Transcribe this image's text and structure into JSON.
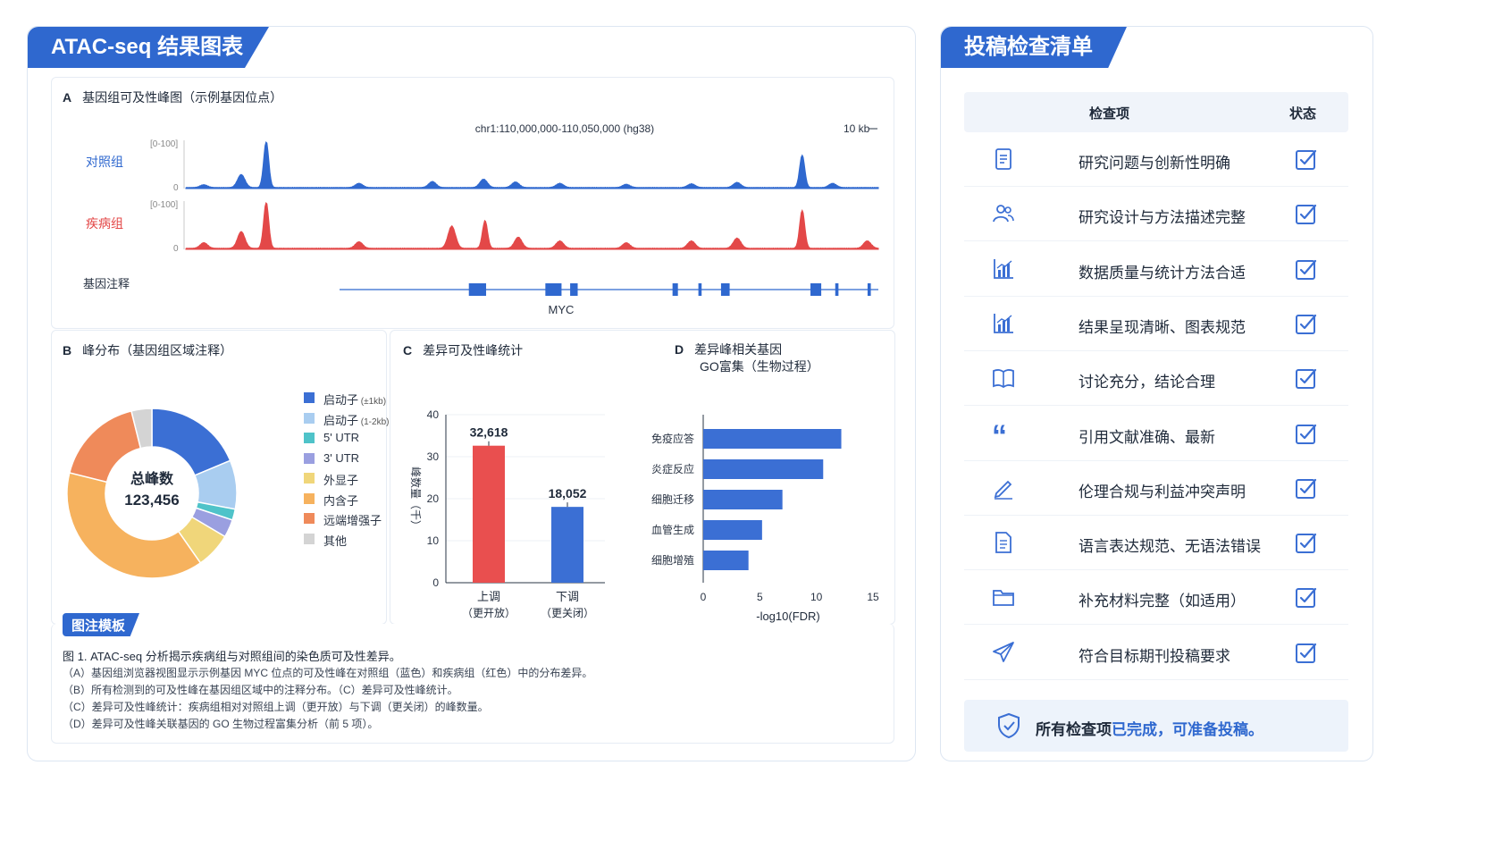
{
  "left_panel": {
    "title": "ATAC-seq 结果图表"
  },
  "panel_a": {
    "letter": "A",
    "title": "基因组可及性峰图（示例基因位点）",
    "locus": "chr1:110,000,000-110,050,000 (hg38)",
    "scale": "10 kb",
    "tracks": [
      {
        "name": "对照组",
        "range": "[0-100]",
        "zero": "0",
        "color": "#2f68cf"
      },
      {
        "name": "疾病组",
        "range": "[0-100]",
        "zero": "0",
        "color": "#e34848"
      }
    ],
    "annotation_label": "基因注释",
    "gene": "MYC"
  },
  "panel_b": {
    "letter": "B",
    "title": "峰分布（基因组区域注释）",
    "center_label": "总峰数",
    "center_value": "123,456"
  },
  "panel_c": {
    "letter": "C",
    "title": "差异可及性峰统计",
    "ylabel": "峰数量（千）"
  },
  "panel_d": {
    "letter": "D",
    "title_line1": "差异峰相关基因",
    "title_line2": "GO富集（生物过程）"
  },
  "legend_panel": {
    "title": "图注模板",
    "caption_title": "图 1. ATAC-seq 分析揭示疾病组与对照组间的染色质可及性差异。",
    "lines": [
      "（A）基因组浏览器视图显示示例基因 MYC 位点的可及性峰在对照组（蓝色）和疾病组（红色）中的分布差异。",
      "（B）所有检测到的可及性峰在基因组区域中的注释分布。（C）差异可及性峰统计。",
      "（C）差异可及性峰统计：疾病组相对对照组上调（更开放）与下调（更关闭）的峰数量。",
      "（D）差异可及性峰关联基因的 GO 生物过程富集分析（前 5 项）。"
    ]
  },
  "checklist": {
    "title": "投稿检查清单",
    "header_item": "检查项",
    "header_status": "状态",
    "items": [
      {
        "label": "研究问题与创新性明确",
        "icon": "document-icon"
      },
      {
        "label": "研究设计与方法描述完整",
        "icon": "users-icon"
      },
      {
        "label": "数据质量与统计方法合适",
        "icon": "bar-chart-icon"
      },
      {
        "label": "结果呈现清晰、图表规范",
        "icon": "bar-chart-icon"
      },
      {
        "label": "讨论充分，结论合理",
        "icon": "book-icon"
      },
      {
        "label": "引用文献准确、最新",
        "icon": "quote-icon"
      },
      {
        "label": "伦理合规与利益冲突声明",
        "icon": "pen-icon"
      },
      {
        "label": "语言表达规范、无语法错误",
        "icon": "text-document-icon"
      },
      {
        "label": "补充材料完整（如适用）",
        "icon": "folder-icon"
      },
      {
        "label": "符合目标期刊投稿要求",
        "icon": "send-icon"
      }
    ],
    "footer_part1": "所有检查项",
    "footer_part2": "已完成，可准备投稿。"
  },
  "colors": {
    "accent": "#2f68cf",
    "red": "#e34848",
    "check": "#3b6fd4"
  },
  "chart_data": [
    {
      "type": "pie",
      "title": "峰分布（基因组区域注释）",
      "slices": [
        {
          "name": "启动子",
          "note": "(±1kb)",
          "value": 18.7,
          "label": "18.7%",
          "color": "#3b6fd4"
        },
        {
          "name": "启动子",
          "note": "(1-2kb)",
          "value": 9.3,
          "label": "9.3%",
          "color": "#a9cdf0"
        },
        {
          "name": "5' UTR",
          "note": "",
          "value": 2.1,
          "label": "2.1%",
          "color": "#4fc3c9"
        },
        {
          "name": "3' UTR",
          "note": "",
          "value": 3.4,
          "label": "3.4%",
          "color": "#9a9fe0"
        },
        {
          "name": "外显子",
          "note": "",
          "value": 6.8,
          "label": "6.8%",
          "color": "#f0d67a"
        },
        {
          "name": "内含子",
          "note": "",
          "value": 38.6,
          "label": "38.6%",
          "color": "#f6b25e"
        },
        {
          "name": "远端增强子",
          "note": "",
          "value": 17.2,
          "label": "17.2%",
          "color": "#ef8a5a"
        },
        {
          "name": "其他",
          "note": "",
          "value": 3.9,
          "label": "3.9%",
          "color": "#d4d4d4"
        }
      ]
    },
    {
      "type": "bar",
      "title": "差异可及性峰统计",
      "categories": [
        "上调",
        "下调"
      ],
      "category_sub": [
        "（更开放）",
        "（更关闭）"
      ],
      "values": [
        32618,
        18052
      ],
      "value_labels": [
        "32,618",
        "18,052"
      ],
      "colors": [
        "#e94f4f",
        "#3b6fd4"
      ],
      "ylim": [
        0,
        40
      ],
      "yticks": [
        0,
        10,
        20,
        30,
        40
      ],
      "ylabel": "峰数量（千）"
    },
    {
      "type": "bar",
      "orientation": "horizontal",
      "title": "差异峰相关基因 GO富集（生物过程）",
      "categories": [
        "免疫应答",
        "炎症反应",
        "细胞迁移",
        "血管生成",
        "细胞增殖"
      ],
      "values": [
        12.2,
        10.6,
        7.0,
        5.2,
        4.0
      ],
      "xlim": [
        0,
        15
      ],
      "xticks": [
        0,
        5,
        10,
        15
      ],
      "xlabel": "-log10(FDR)",
      "color": "#3b6fd4"
    },
    {
      "type": "area",
      "title": "基因组可及性峰图（示例基因位点）",
      "x_range": [
        110000000,
        110050000
      ],
      "ylim": [
        0,
        100
      ],
      "series": [
        {
          "name": "对照组",
          "peaks": [
            [
              110001300,
              6
            ],
            [
              110004000,
              28
            ],
            [
              110005800,
              100
            ],
            [
              110012500,
              9
            ],
            [
              110017800,
              13
            ],
            [
              110021500,
              18
            ],
            [
              110023800,
              12
            ],
            [
              110027000,
              9
            ],
            [
              110031800,
              7
            ],
            [
              110036500,
              8
            ],
            [
              110039800,
              11
            ],
            [
              110044500,
              70
            ],
            [
              110046700,
              9
            ]
          ]
        },
        {
          "name": "疾病组",
          "peaks": [
            [
              110001300,
              12
            ],
            [
              110004000,
              36
            ],
            [
              110005800,
              100
            ],
            [
              110012500,
              14
            ],
            [
              110019200,
              48
            ],
            [
              110021600,
              60
            ],
            [
              110024000,
              24
            ],
            [
              110027000,
              16
            ],
            [
              110031800,
              12
            ],
            [
              110036500,
              16
            ],
            [
              110039800,
              22
            ],
            [
              110044500,
              82
            ],
            [
              110049200,
              16
            ]
          ]
        }
      ],
      "gene_exons": [
        [
          110012000,
          110013600
        ],
        [
          110019100,
          110020600
        ],
        [
          110021400,
          110022100
        ],
        [
          110030900,
          110031400
        ],
        [
          110033300,
          110033600
        ],
        [
          110035400,
          110036200
        ],
        [
          110043700,
          110044700
        ],
        [
          110046000,
          110046300
        ],
        [
          110049000,
          110049300
        ]
      ],
      "gene_x_range": [
        110000000,
        110050000
      ]
    }
  ]
}
